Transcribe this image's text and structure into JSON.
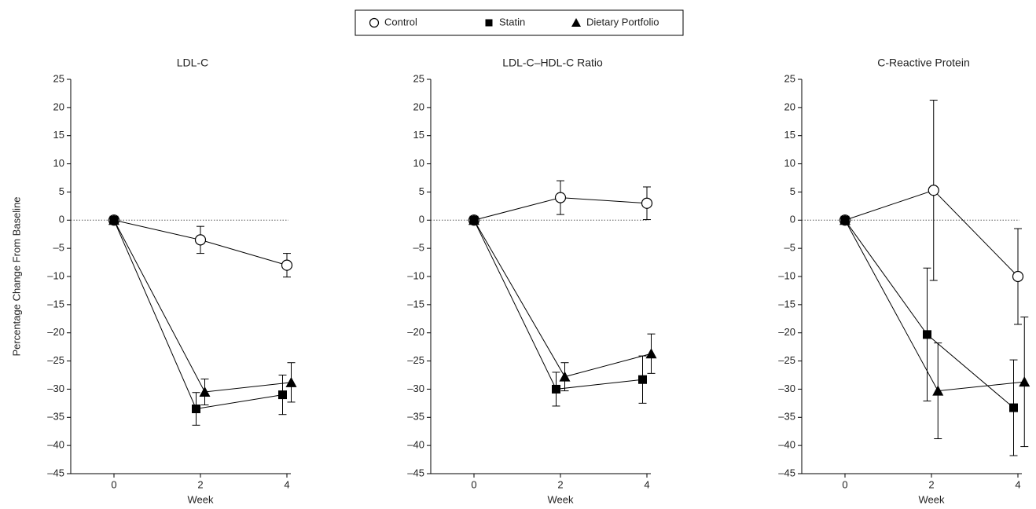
{
  "legend_box": true,
  "y_label": "Percentage Change From Baseline",
  "chart_data": [
    {
      "type": "line",
      "title": "LDL-C",
      "x_label": "Week",
      "xlim": [
        -1,
        4
      ],
      "xticks": [
        0,
        2,
        4
      ],
      "ylim": [
        -45,
        25
      ],
      "yticks": [
        {
          "value": -45,
          "label": "–45"
        },
        {
          "value": -40,
          "label": "–40"
        },
        {
          "value": -35,
          "label": "–35"
        },
        {
          "value": -30,
          "label": "–30"
        },
        {
          "value": -25,
          "label": "–25"
        },
        {
          "value": -20,
          "label": "–20"
        },
        {
          "value": -15,
          "label": "–15"
        },
        {
          "value": -10,
          "label": "–10"
        },
        {
          "value": -5,
          "label": "–5"
        },
        0,
        5,
        10,
        15,
        20,
        25
      ],
      "zero_line": true,
      "series": [
        {
          "name": "Control",
          "marker": "circle",
          "color": "#000000",
          "x": [
            0,
            2,
            4
          ],
          "values": [
            0,
            -3.5,
            -8
          ],
          "errors": [
            null,
            2.4,
            2.1
          ]
        },
        {
          "name": "Statin",
          "marker": "square",
          "color": "#000000",
          "x": [
            0,
            1.9,
            3.9
          ],
          "values": [
            0,
            -33.5,
            -31
          ],
          "errors": [
            null,
            2.9,
            3.5
          ]
        },
        {
          "name": "Dietary Portfolio",
          "marker": "triangle",
          "color": "#000000",
          "x": [
            0,
            2.1,
            4.1
          ],
          "values": [
            0,
            -30.5,
            -28.8
          ],
          "errors": [
            null,
            2.3,
            3.5
          ]
        }
      ]
    },
    {
      "type": "line",
      "title": "LDL-C–HDL-C Ratio",
      "x_label": "Week",
      "xlim": [
        -1,
        4
      ],
      "xticks": [
        0,
        2,
        4
      ],
      "ylim": [
        -45,
        25
      ],
      "yticks": [
        {
          "value": -45,
          "label": "–45"
        },
        {
          "value": -40,
          "label": "–40"
        },
        {
          "value": -35,
          "label": "–35"
        },
        {
          "value": -30,
          "label": "–30"
        },
        {
          "value": -25,
          "label": "–25"
        },
        {
          "value": -20,
          "label": "–20"
        },
        {
          "value": -15,
          "label": "–15"
        },
        {
          "value": -10,
          "label": "–10"
        },
        {
          "value": -5,
          "label": "–5"
        },
        0,
        5,
        10,
        15,
        20,
        25
      ],
      "zero_line": true,
      "series": [
        {
          "marker": "circle",
          "color": "#000000",
          "x": [
            0,
            2,
            4
          ],
          "values": [
            0,
            4,
            3
          ],
          "errors": [
            null,
            3,
            2.9
          ]
        },
        {
          "marker": "square",
          "color": "#000000",
          "x": [
            0,
            1.9,
            3.9
          ],
          "values": [
            0,
            -30,
            -28.3
          ],
          "errors": [
            null,
            3,
            4.2
          ]
        },
        {
          "marker": "triangle",
          "color": "#000000",
          "x": [
            0,
            2.1,
            4.1
          ],
          "values": [
            0,
            -27.8,
            -23.7
          ],
          "errors": [
            null,
            2.5,
            3.5
          ]
        }
      ]
    },
    {
      "type": "line",
      "title": "C-Reactive Protein",
      "x_label": "Week",
      "xlim": [
        -1,
        4
      ],
      "xticks": [
        0,
        2,
        4
      ],
      "ylim": [
        -45,
        25
      ],
      "yticks": [
        {
          "value": -45,
          "label": "–45"
        },
        {
          "value": -40,
          "label": "–40"
        },
        {
          "value": -35,
          "label": "–35"
        },
        {
          "value": -30,
          "label": "–30"
        },
        {
          "value": -25,
          "label": "–25"
        },
        {
          "value": -20,
          "label": "–20"
        },
        {
          "value": -15,
          "label": "–15"
        },
        {
          "value": -10,
          "label": "–10"
        },
        {
          "value": -5,
          "label": "–5"
        },
        0,
        5,
        10,
        15,
        20,
        25
      ],
      "zero_line": true,
      "series": [
        {
          "marker": "circle",
          "color": "#000000",
          "x": [
            0,
            2.05,
            4
          ],
          "values": [
            0,
            5.3,
            -10
          ],
          "errors": [
            null,
            16,
            8.5
          ]
        },
        {
          "marker": "square",
          "color": "#000000",
          "x": [
            0,
            1.9,
            3.9
          ],
          "values": [
            0,
            -20.3,
            -33.3
          ],
          "errors": [
            null,
            11.8,
            8.5
          ]
        },
        {
          "marker": "triangle",
          "color": "#000000",
          "x": [
            0,
            2.15,
            4.15
          ],
          "values": [
            0,
            -30.3,
            -28.7
          ],
          "errors": [
            null,
            8.5,
            11.5
          ]
        }
      ]
    }
  ]
}
